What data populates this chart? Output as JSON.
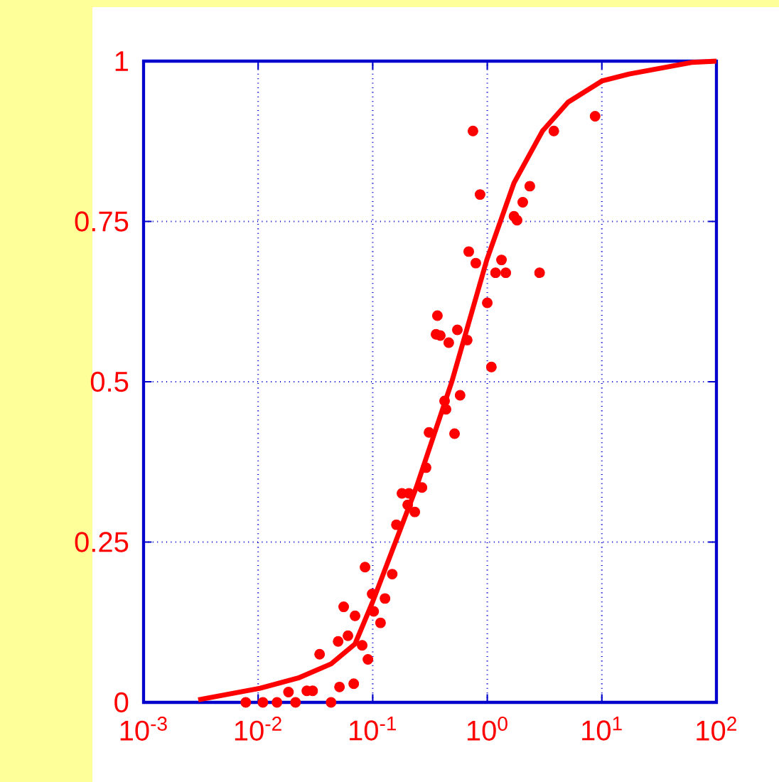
{
  "chart_data": {
    "type": "scatter",
    "log": "x",
    "grid": true,
    "xlim": [
      0.001,
      100
    ],
    "ylim": [
      0,
      1
    ],
    "xticks": [
      {
        "value": 0.001,
        "label": "10$^{-3}$"
      },
      {
        "value": 0.01,
        "label": "10$^{-2}$"
      },
      {
        "value": 0.1,
        "label": "10$^{-1}$"
      },
      {
        "value": 1,
        "label": "10$^{0}$"
      },
      {
        "value": 10,
        "label": "10$^{1}$"
      },
      {
        "value": 100,
        "label": "10$^{2}$"
      }
    ],
    "yticks": [
      0,
      0.25,
      0.5,
      0.75,
      1
    ],
    "series": [
      {
        "marker": "circle",
        "color": "#ff0000",
        "x": [
          0.0078,
          0.011,
          0.0146,
          0.0212,
          0.0433,
          0.0184,
          0.0266,
          0.0299,
          0.0513,
          0.0683,
          0.0344,
          0.0499,
          0.0608,
          0.0809,
          0.0908,
          0.0558,
          0.0701,
          0.0857,
          0.0989,
          0.128,
          0.117,
          0.102,
          0.148,
          0.161,
          0.18,
          0.207,
          0.202,
          0.233,
          0.269,
          0.292,
          0.31,
          0.518,
          0.424,
          0.579,
          0.436,
          1.086,
          0.367,
          0.357,
          0.389,
          0.548,
          0.461,
          0.668,
          1.0,
          0.689,
          0.794,
          1.33,
          1.18,
          1.45,
          2.86,
          0.75,
          0.865,
          1.71,
          1.82,
          2.04,
          2.35,
          3.81,
          8.73
        ],
        "values": [
          0,
          0,
          0,
          0,
          0,
          0.016,
          0.018,
          0.018,
          0.024,
          0.029,
          0.075,
          0.095,
          0.104,
          0.089,
          0.067,
          0.149,
          0.135,
          0.211,
          0.169,
          0.162,
          0.124,
          0.142,
          0.2,
          0.277,
          0.326,
          0.326,
          0.308,
          0.297,
          0.335,
          0.366,
          0.421,
          0.419,
          0.47,
          0.479,
          0.457,
          0.523,
          0.603,
          0.574,
          0.572,
          0.581,
          0.561,
          0.565,
          0.623,
          0.703,
          0.685,
          0.69,
          0.67,
          0.67,
          0.67,
          0.891,
          0.792,
          0.758,
          0.752,
          0.78,
          0.805,
          0.891,
          0.914
        ]
      },
      {
        "type": "line",
        "marker": "none",
        "line_style": "solid",
        "color": "#ff0000",
        "x": [
          0.003,
          0.0104,
          0.0224,
          0.0433,
          0.07,
          0.1,
          0.24,
          0.49,
          0.99,
          1.71,
          3.03,
          5.07,
          10,
          17.3,
          60.7,
          100
        ],
        "values": [
          0.004,
          0.022,
          0.038,
          0.06,
          0.091,
          0.157,
          0.335,
          0.5,
          0.69,
          0.81,
          0.891,
          0.936,
          0.969,
          0.98,
          0.998,
          1
        ]
      }
    ]
  }
}
